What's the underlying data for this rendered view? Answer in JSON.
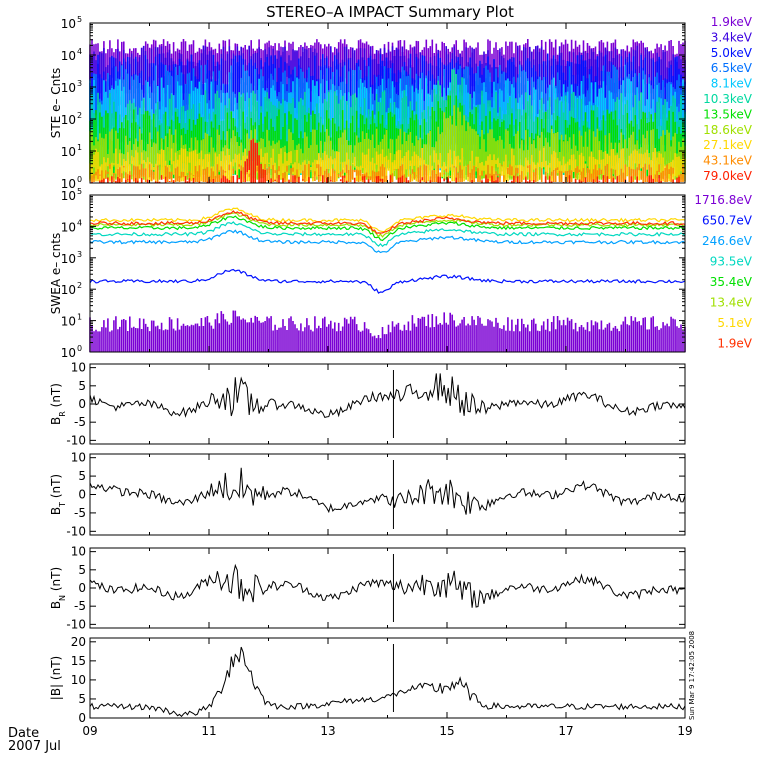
{
  "title": "STEREO–A IMPACT Summary Plot",
  "date_label": "Date",
  "date_value": "2007 Jul",
  "timestamp": "Sun Mar  9 17:42:05 2008",
  "x_ticks": [
    "09",
    "11",
    "13",
    "15",
    "17",
    "19"
  ],
  "chart_data": [
    {
      "type": "line",
      "id": "ste",
      "ylabel": "STE e– Cnts",
      "yscale": "log",
      "ylim_exp": [
        0,
        5
      ],
      "series": [
        {
          "name": "1.9keV",
          "color": "#7b00d4",
          "level": 4.25,
          "amp": 0.25,
          "floor": 2.8
        },
        {
          "name": "3.4keV",
          "color": "#3a00e0",
          "level": 3.95,
          "amp": 0.35,
          "floor": 2.0
        },
        {
          "name": "5.0keV",
          "color": "#0010ff",
          "level": 3.55,
          "amp": 0.5,
          "floor": 1.2
        },
        {
          "name": "6.5keV",
          "color": "#0070ff",
          "level": 3.1,
          "amp": 0.6,
          "floor": 0.7
        },
        {
          "name": "8.1keV",
          "color": "#00c8ff",
          "level": 2.7,
          "amp": 0.6,
          "floor": 0.4
        },
        {
          "name": "10.3keV",
          "color": "#00d8a0",
          "level": 2.3,
          "amp": 0.6,
          "floor": 0.25
        },
        {
          "name": "13.5keV",
          "color": "#00e000",
          "level": 1.8,
          "amp": 0.5,
          "floor": 0.15
        },
        {
          "name": "18.6keV",
          "color": "#a0e000",
          "level": 1.3,
          "amp": 0.4,
          "floor": 0.1
        },
        {
          "name": "27.1keV",
          "color": "#ffd800",
          "level": 0.8,
          "amp": 0.3,
          "floor": 0.05
        },
        {
          "name": "43.1keV",
          "color": "#ff8c00",
          "level": 0.4,
          "amp": 0.2,
          "floor": 0.03
        },
        {
          "name": "79.0keV",
          "color": "#ff2000",
          "level": 0.15,
          "amp": 0.15,
          "floor": 0.0
        }
      ]
    },
    {
      "type": "line",
      "id": "swea",
      "ylabel": "SWEA e– cnts",
      "yscale": "log",
      "ylim_exp": [
        0,
        5
      ],
      "series": [
        {
          "name": "1716.8eV",
          "color": "#7b00d4",
          "level": 0.9
        },
        {
          "name": "650.7eV",
          "color": "#0010ff",
          "level": 2.25
        },
        {
          "name": "246.6eV",
          "color": "#00a0ff",
          "level": 3.5
        },
        {
          "name": "93.5eV",
          "color": "#00d8c0",
          "level": 3.75
        },
        {
          "name": "35.4eV",
          "color": "#00e000",
          "level": 3.95
        },
        {
          "name": "13.4eV",
          "color": "#a0e000",
          "level": 4.05
        },
        {
          "name": "5.1eV",
          "color": "#ffd800",
          "level": 4.2
        },
        {
          "name": "1.9eV",
          "color": "#ff3000",
          "level": 4.1
        }
      ]
    },
    {
      "type": "line",
      "id": "br",
      "ylabel_main": "B",
      "ylabel_sub": "R",
      "ylabel_unit": " (nT)",
      "ylim": [
        -11,
        11
      ],
      "yticks": [
        -10,
        -5,
        0,
        5,
        10
      ]
    },
    {
      "type": "line",
      "id": "bt",
      "ylabel_main": "B",
      "ylabel_sub": "T",
      "ylabel_unit": " (nT)",
      "ylim": [
        -11,
        11
      ],
      "yticks": [
        -10,
        -5,
        0,
        5,
        10
      ]
    },
    {
      "type": "line",
      "id": "bn",
      "ylabel_main": "B",
      "ylabel_sub": "N",
      "ylabel_unit": " (nT)",
      "ylim": [
        -11,
        11
      ],
      "yticks": [
        -10,
        -5,
        0,
        5,
        10
      ]
    },
    {
      "type": "line",
      "id": "bmag",
      "ylabel": "|B| (nT)",
      "ylim": [
        0,
        21
      ],
      "yticks": [
        0,
        5,
        10,
        15,
        20
      ]
    }
  ]
}
